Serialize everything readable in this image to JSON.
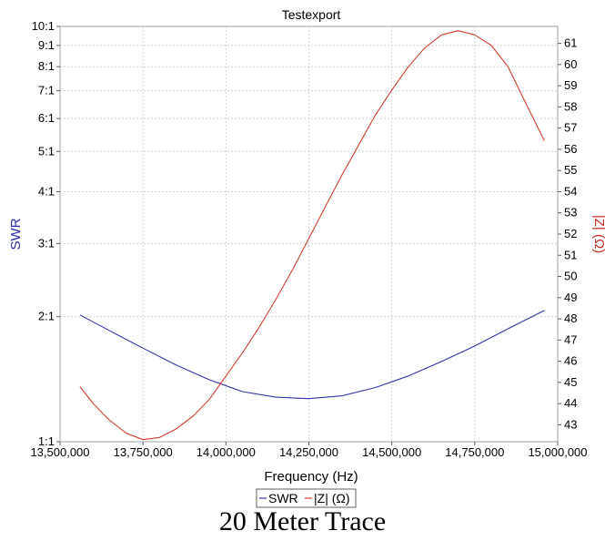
{
  "caption": "20 Meter Trace",
  "chart_data": {
    "type": "line",
    "title": "Testexport",
    "xlabel": "Frequency (Hz)",
    "ylabel_left": "SWR",
    "ylabel_right": "|Z| (Ω)",
    "xlim": [
      13500000,
      15000000
    ],
    "x_ticks": [
      13500000,
      13750000,
      14000000,
      14250000,
      14500000,
      14750000,
      15000000
    ],
    "x_tick_labels": [
      "13,500,000",
      "13,750,000",
      "14,000,000",
      "14,250,000",
      "14,500,000",
      "14,750,000",
      "15,000,000"
    ],
    "swr_axis": {
      "scale": "log",
      "ylim": [
        1,
        10
      ],
      "ticks": [
        1,
        2,
        3,
        4,
        5,
        6,
        7,
        8,
        9,
        10
      ],
      "tick_labels": [
        "1:1",
        "2:1",
        "3:1",
        "4:1",
        "5:1",
        "6:1",
        "7:1",
        "8:1",
        "9:1",
        "10:1"
      ]
    },
    "z_axis": {
      "scale": "linear",
      "ylim": [
        42.2,
        61.8
      ],
      "ticks": [
        43,
        44,
        45,
        46,
        47,
        48,
        49,
        50,
        51,
        52,
        53,
        54,
        55,
        56,
        57,
        58,
        59,
        60,
        61
      ],
      "tick_labels": [
        "43",
        "44",
        "45",
        "46",
        "47",
        "48",
        "49",
        "50",
        "51",
        "52",
        "53",
        "54",
        "55",
        "56",
        "57",
        "58",
        "59",
        "60",
        "61"
      ]
    },
    "grid": true,
    "legend": {
      "placement": "bottom-center",
      "entries": [
        "SWR",
        "|Z| (Ω)"
      ]
    },
    "series": [
      {
        "name": "SWR",
        "axis": "left",
        "color": "#3333aa",
        "x": [
          13560000,
          13650000,
          13750000,
          13850000,
          13950000,
          14050000,
          14150000,
          14250000,
          14350000,
          14450000,
          14550000,
          14650000,
          14750000,
          14850000,
          14960000
        ],
        "y": [
          2.02,
          1.85,
          1.68,
          1.53,
          1.41,
          1.32,
          1.28,
          1.27,
          1.29,
          1.35,
          1.44,
          1.56,
          1.7,
          1.87,
          2.07
        ]
      },
      {
        "name": "|Z| (Ω)",
        "axis": "right",
        "color": "#d04030",
        "x": [
          13560000,
          13600000,
          13650000,
          13700000,
          13750000,
          13800000,
          13850000,
          13900000,
          13950000,
          14000000,
          14050000,
          14100000,
          14150000,
          14200000,
          14250000,
          14300000,
          14350000,
          14400000,
          14450000,
          14500000,
          14550000,
          14600000,
          14650000,
          14700000,
          14750000,
          14800000,
          14850000,
          14900000,
          14960000
        ],
        "y": [
          44.8,
          44.0,
          43.2,
          42.6,
          42.3,
          42.4,
          42.8,
          43.4,
          44.2,
          45.3,
          46.4,
          47.6,
          48.9,
          50.3,
          51.8,
          53.3,
          54.8,
          56.2,
          57.6,
          58.8,
          59.9,
          60.8,
          61.4,
          61.6,
          61.4,
          60.9,
          59.9,
          58.3,
          56.4
        ]
      }
    ]
  }
}
